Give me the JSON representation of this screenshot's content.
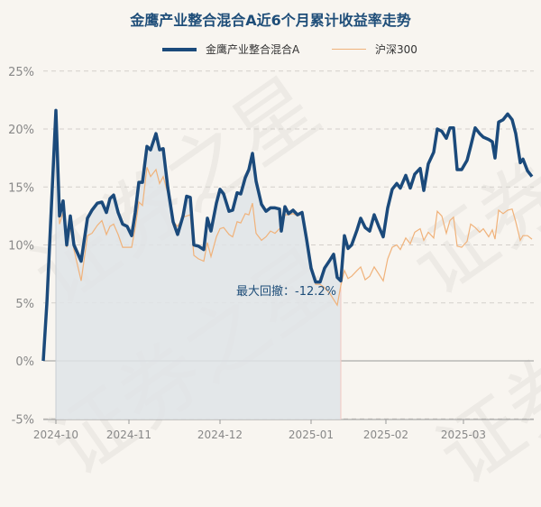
{
  "watermark": "证券之星",
  "chart_data": {
    "type": "line",
    "title": "金鹰产业整合混合A近6个月累计收益率走势",
    "legend_position": "top-center",
    "ylim": [
      -5,
      25
    ],
    "yticks": [
      "25%",
      "20%",
      "15%",
      "10%",
      "5%",
      "0%",
      "-5%"
    ],
    "xticks": [
      "2024-10",
      "2024-11",
      "2024-12",
      "2025-01",
      "2025-02",
      "2025-03"
    ],
    "grid": true,
    "annotation": "最大回撤：-12.2%",
    "colors": {
      "fund": "#1b4a7b",
      "index": "#f0b27a",
      "shade": "#dfe4e8"
    },
    "series": [
      {
        "name": "金鹰产业整合混合A",
        "values": [
          0,
          5,
          21.6,
          12.5,
          13.8,
          10,
          12.5,
          10,
          8.6,
          12.3,
          13,
          13.6,
          13.7,
          12.8,
          14,
          14.3,
          12.8,
          11.8,
          11.6,
          10.8,
          12.8,
          15.4,
          15.4,
          18.5,
          18.2,
          19.6,
          18.2,
          18.3,
          15,
          12,
          10.9,
          12.5,
          14.2,
          14.1,
          10,
          9.9,
          9.6,
          12.3,
          11.2,
          13.6,
          14.8,
          14.4,
          12.9,
          13,
          14.5,
          14.4,
          15.8,
          16.5,
          17.9,
          15.5,
          13.5,
          12.9,
          13.2,
          13.2,
          13.1,
          11.2,
          13.3,
          12.7,
          13,
          12.6,
          12.8,
          10.5,
          8,
          6.8,
          6.8,
          8,
          8.7,
          9.2,
          7.2,
          6.9,
          10.8,
          9.7,
          10,
          11.3,
          12.3,
          11.5,
          11.2,
          12.6,
          11.6,
          10.7,
          13.2,
          14.8,
          15.3,
          14.9,
          16,
          14.9,
          16.1,
          16.6,
          14.7,
          17,
          18,
          20,
          19.8,
          19.2,
          20.1,
          20.1,
          16.5,
          16.5,
          17.3,
          18.5,
          20.1,
          19.6,
          19.3,
          19.1,
          18.9,
          17.5,
          20.6,
          20.8,
          21.3,
          20.8,
          19.6,
          17.1,
          17.4,
          16.4,
          15.9
        ]
      },
      {
        "name": "沪深300",
        "values": [
          0,
          4,
          20,
          11.8,
          12.8,
          9.8,
          11.5,
          9.6,
          6.9,
          10.8,
          11,
          11.7,
          12.1,
          10.9,
          11.6,
          11.8,
          10.9,
          9.8,
          9.8,
          9.8,
          11.5,
          13.7,
          13.4,
          16.7,
          15.9,
          16.5,
          15.3,
          15.9,
          14.5,
          12,
          11.6,
          12.4,
          12.5,
          12.6,
          9.1,
          8.8,
          8.6,
          10.2,
          9,
          10.7,
          11.4,
          11.5,
          10.9,
          10.7,
          12,
          11.9,
          12.7,
          12.6,
          13.6,
          11,
          10.4,
          10.7,
          11.2,
          11,
          11.4,
          11.4,
          12.6,
          12.6,
          12.7,
          12.5,
          12.7,
          10.5,
          8,
          6.6,
          6.6,
          6.3,
          5.8,
          5.3,
          4.8,
          6.5,
          7.8,
          7.1,
          7.3,
          7.8,
          8.1,
          7,
          7.3,
          8.1,
          7.5,
          6.9,
          8.8,
          9.8,
          10,
          9.6,
          10.6,
          10.1,
          11.1,
          11.4,
          10.4,
          11.1,
          10.6,
          12.9,
          12.5,
          11,
          12.1,
          12.4,
          9.9,
          9.8,
          10.3,
          11.8,
          11.5,
          11.1,
          11.4,
          10.7,
          11.3,
          10.5,
          13,
          12.7,
          13,
          13.1,
          12,
          10.4,
          10.8,
          10.8,
          10.5
        ]
      }
    ]
  }
}
